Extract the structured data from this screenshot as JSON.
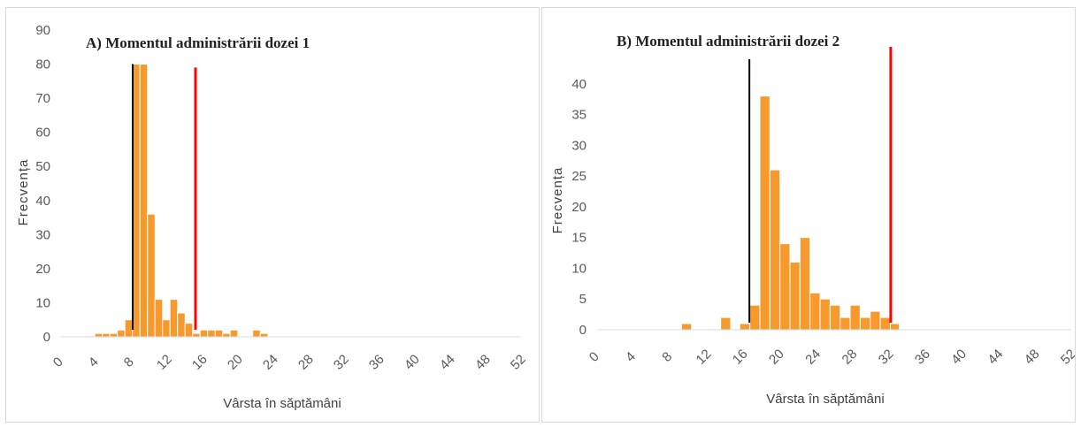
{
  "colors": {
    "bar": "#F79A2E",
    "bar_stroke": "#FFFFFF",
    "axis": "#D9D9D9",
    "line_black": "#000000",
    "line_red": "#FF0000"
  },
  "chart_data": [
    {
      "type": "bar",
      "title": "A) Momentul administrării dozei 1",
      "xlabel": "Vârsta în săptămâni",
      "ylabel": "Frecvența",
      "xlim": [
        0,
        52
      ],
      "ylim": [
        0,
        90
      ],
      "xticks": [
        0,
        4,
        8,
        12,
        16,
        20,
        24,
        28,
        32,
        36,
        40,
        44,
        48,
        52
      ],
      "yticks": [
        0,
        10,
        20,
        30,
        40,
        50,
        60,
        70,
        80,
        90
      ],
      "bin_width": 0.86,
      "x": [
        4.25,
        5.1,
        5.95,
        6.8,
        7.65,
        8.5,
        9.35,
        10.2,
        11.05,
        11.9,
        12.75,
        13.6,
        14.45,
        15.3,
        16.15,
        17.0,
        17.85,
        18.7,
        19.55,
        20.4,
        21.25,
        22.1,
        22.95
      ],
      "values": [
        1,
        1,
        1,
        2,
        5,
        80,
        80,
        36,
        11,
        5,
        11,
        7,
        4,
        1,
        2,
        2,
        2,
        1,
        2,
        0,
        0,
        2,
        1
      ],
      "reference_lines": [
        {
          "x": 8.1,
          "y_top": 80,
          "color": "black"
        },
        {
          "x": 15.2,
          "y_top": 79,
          "color": "red"
        }
      ]
    },
    {
      "type": "bar",
      "title": "B) Momentul administrării dozei 2",
      "xlabel": "Vârsta în săptămâni",
      "ylabel": "Frecvența",
      "xlim": [
        0,
        52
      ],
      "ylim": [
        0,
        45
      ],
      "xticks": [
        0,
        4,
        8,
        12,
        16,
        20,
        24,
        28,
        32,
        36,
        40,
        44,
        48,
        52
      ],
      "yticks": [
        0,
        5,
        10,
        15,
        20,
        25,
        30,
        35,
        40
      ],
      "bin_width": 1.1,
      "x": [
        9.8,
        14.1,
        16.2,
        17.3,
        18.4,
        19.5,
        20.6,
        21.7,
        22.8,
        23.9,
        25.0,
        26.1,
        27.2,
        28.3,
        29.4,
        30.5,
        32.6
      ],
      "values": [
        1,
        2,
        1,
        4,
        38,
        26,
        14,
        11,
        15,
        6,
        5,
        4,
        2,
        4,
        2,
        3,
        1
      ],
      "extra_values_x": [
        31.6
      ],
      "extra_values": [
        2
      ],
      "reference_lines": [
        {
          "x": 16.7,
          "y_top": 44,
          "color": "black"
        },
        {
          "x": 32.2,
          "y_top": 46,
          "color": "red"
        }
      ]
    }
  ]
}
